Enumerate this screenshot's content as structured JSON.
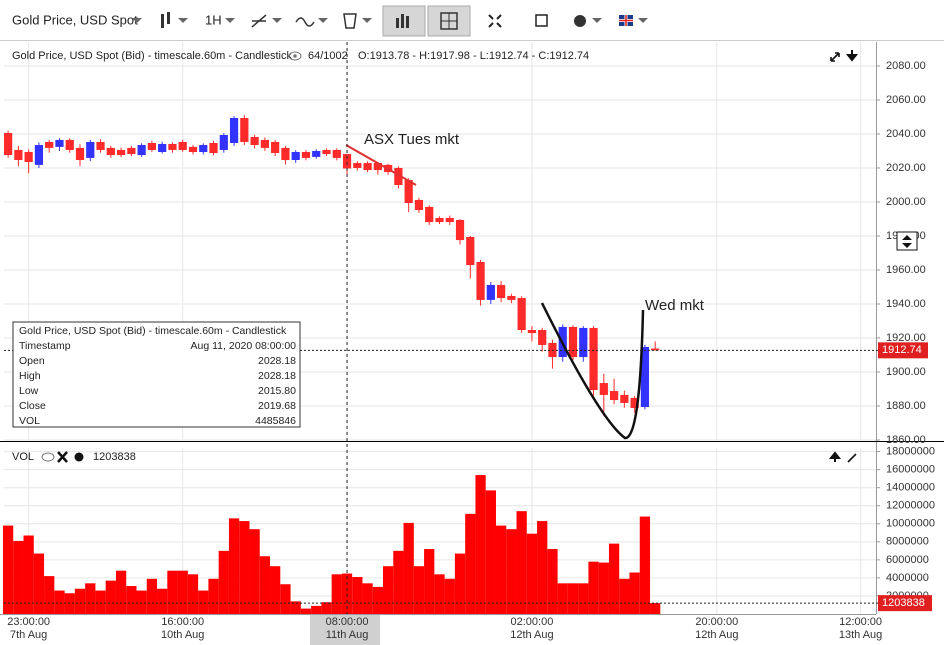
{
  "toolbar": {
    "symbol": "Gold Price, USD Spot",
    "interval": "1H"
  },
  "chart_data": [
    {
      "type": "candlestick",
      "title": "Gold Price, USD Spot (Bid) - timescale.60m - Candlestick",
      "counter": "64/1002",
      "ohlc_text": "O:1913.78 - H:1917.98 - L:1912.74 - C:1912.74",
      "up_color": "#3333ff",
      "down_color": "#ff2a2a",
      "open": [
        2040.6,
        2030.6,
        2029.4,
        2021.8,
        2035.3,
        2032.4,
        2036.5,
        2031.8,
        2025.9,
        2035.3,
        2031.8,
        2030.6,
        2031.8,
        2027.6,
        2034.7,
        2029.4,
        2034.1,
        2035.3,
        2032.4,
        2029.4,
        2034.7,
        2030.6,
        2034.7,
        2049.4,
        2038.2,
        2036.5,
        2035.3,
        2031.8,
        2024.7,
        2029.4,
        2026.5,
        2030.6,
        2030.6,
        2028.18,
        2022.9,
        2022.9,
        2022.9,
        2021.8,
        2020.0,
        2012.9,
        2001.2,
        1997.1,
        1990.6,
        1990.6,
        1989.4,
        1979.4,
        1964.7,
        1942.4,
        1951.2,
        1944.7,
        1943.5,
        1924.7,
        1924.7,
        1917.1,
        1908.8,
        1926.5,
        1908.8,
        1925.9,
        1893.5,
        1888.8,
        1886.5,
        1884.7,
        1879.4,
        1913.78
      ],
      "high": [
        2042,
        2033,
        2031,
        2035,
        2036.5,
        2037.5,
        2037.5,
        2034,
        2036.5,
        2037,
        2033,
        2032,
        2033,
        2034.5,
        2036,
        2035.5,
        2035,
        2036.5,
        2033.5,
        2034.5,
        2036,
        2040.5,
        2050.5,
        2051,
        2039.5,
        2038,
        2036.5,
        2033,
        2030.5,
        2030.5,
        2031,
        2031.5,
        2031.5,
        2028.18,
        2024,
        2024,
        2023.5,
        2022.5,
        2021,
        2014,
        2002.5,
        1998,
        1991.5,
        1992,
        1990,
        1980,
        1966,
        1953,
        1953.5,
        1946,
        1944.5,
        1927,
        1926,
        1919,
        1928,
        1927.5,
        1927,
        1927,
        1899,
        1896,
        1889,
        1886,
        1916,
        1917.98
      ],
      "low": [
        2026,
        2021,
        2017,
        2020,
        2029,
        2030,
        2029,
        2021,
        2024,
        2029,
        2026,
        2026.5,
        2027,
        2026.5,
        2029.5,
        2028.5,
        2029,
        2029.5,
        2028,
        2028,
        2027.5,
        2029,
        2033,
        2033.5,
        2031.5,
        2030,
        2027,
        2022,
        2023,
        2024.5,
        2025.5,
        2027,
        2024.5,
        2015.8,
        2018.5,
        2017.5,
        2016,
        2016,
        2008,
        1994,
        1993.5,
        1986.5,
        1987,
        1986.5,
        1975,
        1955,
        1939,
        1940,
        1941,
        1940.5,
        1923,
        1918,
        1912,
        1902,
        1906,
        1907,
        1906,
        1886,
        1874,
        1881,
        1879,
        1876,
        1878,
        1912.74
      ],
      "close": [
        2027.6,
        2024.7,
        2023.5,
        2033.5,
        2031.8,
        2036.5,
        2030.6,
        2024.7,
        2035.3,
        2030.6,
        2027.6,
        2027.6,
        2028.2,
        2033.5,
        2030.6,
        2034.1,
        2030.6,
        2030.6,
        2029.4,
        2033.5,
        2028.8,
        2039.4,
        2049.4,
        2035.3,
        2033.5,
        2031.8,
        2028.8,
        2024.7,
        2029.4,
        2025.9,
        2030.0,
        2028.2,
        2025.9,
        2019.68,
        2020.0,
        2018.8,
        2018.8,
        2017.6,
        2010.0,
        1999.4,
        1995.3,
        1988.2,
        1988.2,
        1988.2,
        1977.6,
        1962.9,
        1942.4,
        1951.2,
        1943.5,
        1942.4,
        1924.7,
        1922.9,
        1915.9,
        1908.8,
        1926.5,
        1908.8,
        1925.9,
        1889.4,
        1886.5,
        1883.5,
        1881.8,
        1878.8,
        1914.7,
        1912.74
      ],
      "xlim": [
        -0.4,
        84.5
      ],
      "xticks": [
        {
          "value": 2,
          "label": "23:00:00\n7th Aug"
        },
        {
          "value": 17,
          "label": "16:00:00\n10th Aug"
        },
        {
          "value": 33,
          "label": "08:00:00\n11th Aug"
        },
        {
          "value": 51,
          "label": "02:00:00\n12th Aug"
        },
        {
          "value": 69,
          "label": "20:00:00\n12th Aug"
        },
        {
          "value": 83,
          "label": "12:00:00\n13th Aug"
        }
      ],
      "ylim": [
        1860,
        2094.1
      ],
      "yticks": [
        {
          "value": 1860,
          "label": "1860.00"
        },
        {
          "value": 1880,
          "label": "1880.00"
        },
        {
          "value": 1900,
          "label": "1900.00"
        },
        {
          "value": 1920,
          "label": "1920.00"
        },
        {
          "value": 1940,
          "label": "1940.00"
        },
        {
          "value": 1960,
          "label": "1960.00"
        },
        {
          "value": 1980,
          "label": "1980.00"
        },
        {
          "value": 2000,
          "label": "2000.00"
        },
        {
          "value": 2020,
          "label": "2020.00"
        },
        {
          "value": 2040,
          "label": "2040.00"
        },
        {
          "value": 2060,
          "label": "2060.00"
        },
        {
          "value": 2080,
          "label": "2080.00"
        }
      ],
      "grid": true,
      "annotations": [
        {
          "text": "ASX Tues mkt",
          "color": "#e03030"
        },
        {
          "text": "Wed mkt",
          "color": "#111111"
        }
      ],
      "tooltip": {
        "title": "Gold Price, USD Spot (Bid) - timescale.60m - Candlestick",
        "rows": [
          [
            "Timestamp",
            "Aug 11, 2020 08:00:00"
          ],
          [
            "Open",
            "2028.18"
          ],
          [
            "High",
            "2028.18"
          ],
          [
            "Low",
            "2015.80"
          ],
          [
            "Close",
            "2019.68"
          ],
          [
            "VOL",
            "4485846"
          ]
        ]
      }
    },
    {
      "type": "bar",
      "title": "VOL",
      "color": "#ff0000",
      "values": [
        9800000,
        8100000,
        8700000,
        6700000,
        4200000,
        2600000,
        2300000,
        2800000,
        3400000,
        2600000,
        3700000,
        4800000,
        3100000,
        2600000,
        3900000,
        2800000,
        4800000,
        4800000,
        4400000,
        2600000,
        3900000,
        7000000,
        10600000,
        10300000,
        9400000,
        6400000,
        5300000,
        3300000,
        1400000,
        600000,
        900000,
        1300000,
        4400000,
        4485846,
        4100000,
        3400000,
        3000000,
        5300000,
        7000000,
        10100000,
        5300000,
        7200000,
        4400000,
        3900000,
        6700000,
        11100000,
        15400000,
        13700000,
        9800000,
        9400000,
        11400000,
        8900000,
        10300000,
        7200000,
        3400000,
        3400000,
        3400000,
        5800000,
        5700000,
        7800000,
        3900000,
        4600000,
        10800000,
        1203838
      ],
      "ylim": [
        0,
        18400000
      ],
      "yticks": [
        2000000,
        4000000,
        6000000,
        8000000,
        10000000,
        12000000,
        14000000,
        16000000,
        18000000
      ],
      "grid": true
    }
  ]
}
